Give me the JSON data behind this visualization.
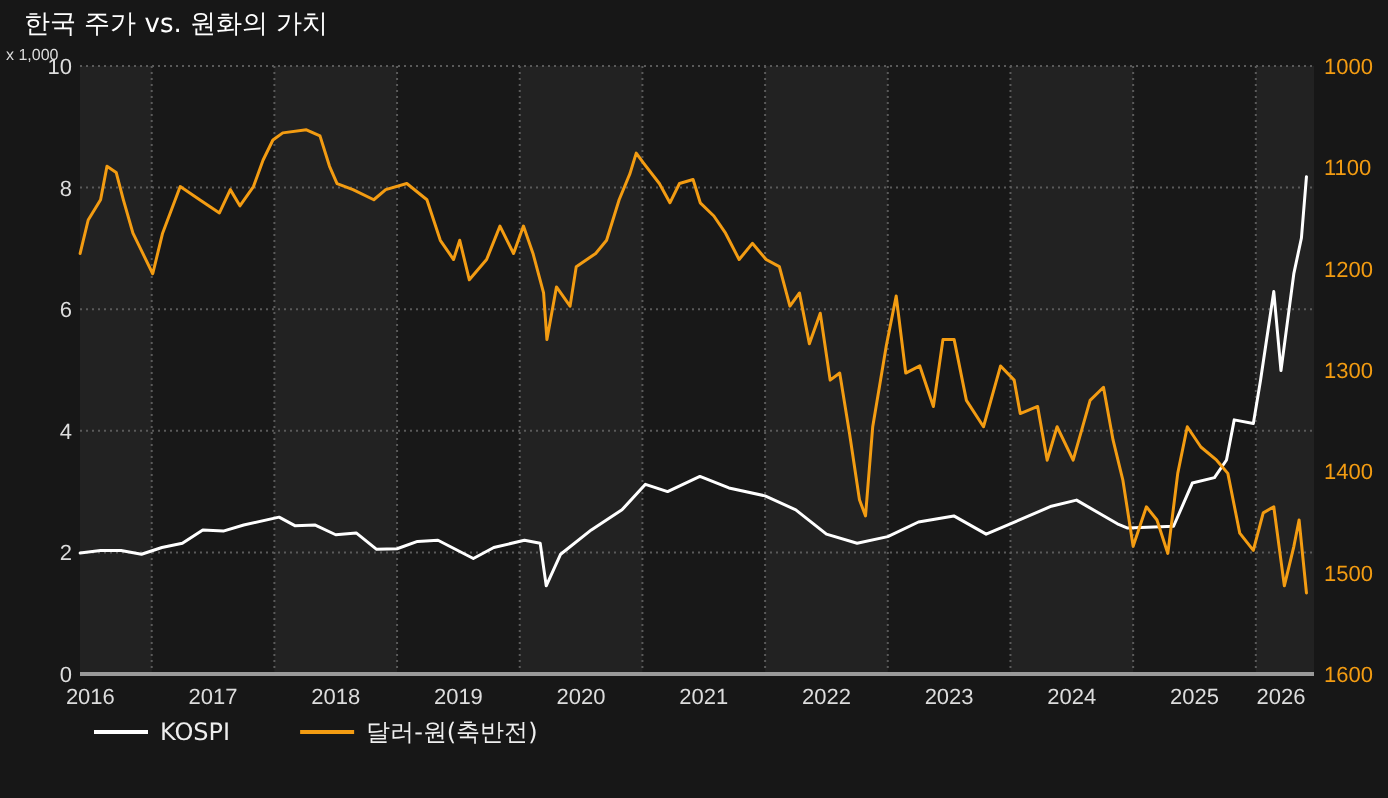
{
  "chart_data": {
    "type": "line",
    "title": "한국 주가 vs. 원화의 가치",
    "ylabel": "x 1,000",
    "xlim": [
      "2016-05-31",
      "2026-06-22"
    ],
    "xticks": [
      {
        "value": "2016-07-01",
        "label": "2016"
      },
      {
        "value": "2017-01-01",
        "label": null
      },
      {
        "value": "2017-07-01",
        "label": "2017"
      },
      {
        "value": "2018-01-01",
        "label": null
      },
      {
        "value": "2018-07-01",
        "label": "2018"
      },
      {
        "value": "2019-01-01",
        "label": null
      },
      {
        "value": "2019-07-01",
        "label": "2019"
      },
      {
        "value": "2020-01-01",
        "label": null
      },
      {
        "value": "2020-07-01",
        "label": "2020"
      },
      {
        "value": "2021-01-01",
        "label": null
      },
      {
        "value": "2021-07-01",
        "label": "2021"
      },
      {
        "value": "2022-01-01",
        "label": null
      },
      {
        "value": "2022-07-01",
        "label": "2022"
      },
      {
        "value": "2023-01-01",
        "label": null
      },
      {
        "value": "2023-07-01",
        "label": "2023"
      },
      {
        "value": "2024-01-01",
        "label": null
      },
      {
        "value": "2024-07-01",
        "label": "2024"
      },
      {
        "value": "2025-01-01",
        "label": null
      },
      {
        "value": "2025-07-01",
        "label": "2025"
      },
      {
        "value": "2026-01-01",
        "label": null
      },
      {
        "value": "2026-03-15",
        "label": "2026"
      }
    ],
    "ylim": [
      0,
      10
    ],
    "yticks": [
      0,
      2,
      4,
      6,
      8,
      10
    ],
    "y2lim": [
      1600,
      1000
    ],
    "y2ticks": [
      1000,
      1100,
      1200,
      1300,
      1400,
      1500,
      1600
    ],
    "grid": true,
    "legend": "bottom left",
    "line_style": "solid",
    "bands": [
      {
        "axis": "x",
        "from": "2016-05-31",
        "to": "2017-01-01",
        "color": "#222222"
      },
      {
        "axis": "x",
        "from": "2018-01-01",
        "to": "2019-01-01",
        "color": "#222222"
      },
      {
        "axis": "x",
        "from": "2020-01-01",
        "to": "2021-01-01",
        "color": "#222222"
      },
      {
        "axis": "x",
        "from": "2022-01-01",
        "to": "2023-01-01",
        "color": "#222222"
      },
      {
        "axis": "x",
        "from": "2024-01-01",
        "to": "2025-01-01",
        "color": "#222222"
      },
      {
        "axis": "x",
        "from": "2026-01-01",
        "to": "2026-06-22",
        "color": "#222222"
      }
    ],
    "series": [
      {
        "name": "KOSPI",
        "color": "#ffffff",
        "x": [
          "2016-06-01",
          "2016-08-01",
          "2016-10-01",
          "2016-12-01",
          "2017-02-01",
          "2017-04-01",
          "2017-06-01",
          "2017-08-01",
          "2017-10-01",
          "2018-01-15",
          "2018-03-01",
          "2018-05-01",
          "2018-07-01",
          "2018-09-01",
          "2018-11-01",
          "2019-01-01",
          "2019-03-01",
          "2019-05-01",
          "2019-08-15",
          "2019-10-15",
          "2020-01-15",
          "2020-03-01",
          "2020-03-19",
          "2020-05-01",
          "2020-08-01",
          "2020-11-01",
          "2021-01-10",
          "2021-03-15",
          "2021-06-20",
          "2021-09-15",
          "2022-01-01",
          "2022-04-01",
          "2022-07-01",
          "2022-10-01",
          "2023-01-01",
          "2023-04-01",
          "2023-07-15",
          "2023-10-20",
          "2024-05-01",
          "2024-07-15",
          "2024-11-15",
          "2024-12-15",
          "2025-04-30",
          "2025-06-25",
          "2025-08-30",
          "2025-10-05",
          "2025-10-28",
          "2025-12-24",
          "2026-01-15",
          "2026-02-24",
          "2026-03-15",
          "2026-04-23",
          "2026-05-15",
          "2026-05-30"
        ],
        "values": [
          1.99,
          2.03,
          2.03,
          1.97,
          2.08,
          2.15,
          2.37,
          2.35,
          2.45,
          2.58,
          2.44,
          2.45,
          2.29,
          2.32,
          2.05,
          2.06,
          2.18,
          2.2,
          1.9,
          2.08,
          2.2,
          2.15,
          1.45,
          1.97,
          2.37,
          2.7,
          3.12,
          3.0,
          3.25,
          3.06,
          2.93,
          2.7,
          2.3,
          2.15,
          2.26,
          2.5,
          2.6,
          2.3,
          2.76,
          2.86,
          2.47,
          2.4,
          2.43,
          3.14,
          3.23,
          3.52,
          4.18,
          4.12,
          4.83,
          6.29,
          4.99,
          6.59,
          7.17,
          8.18
        ]
      },
      {
        "name": "달러-원(축반전)",
        "color": "#f39c12",
        "axis": "y2",
        "x": [
          "2016-06-01",
          "2016-06-25",
          "2016-08-01",
          "2016-08-20",
          "2016-09-17",
          "2016-10-08",
          "2016-11-06",
          "2016-12-05",
          "2017-01-04",
          "2017-02-03",
          "2017-03-25",
          "2017-05-22",
          "2017-07-20",
          "2017-08-22",
          "2017-09-20",
          "2017-10-30",
          "2017-11-28",
          "2017-12-27",
          "2018-01-26",
          "2018-04-05",
          "2018-05-15",
          "2018-06-13",
          "2018-07-05",
          "2018-08-22",
          "2018-10-23",
          "2018-11-28",
          "2019-01-30",
          "2019-03-29",
          "2019-05-08",
          "2019-06-17",
          "2019-07-05",
          "2019-08-03",
          "2019-09-24",
          "2019-11-03",
          "2019-12-13",
          "2020-01-12",
          "2020-02-10",
          "2020-03-11",
          "2020-03-21",
          "2020-04-19",
          "2020-05-29",
          "2020-06-17",
          "2020-08-14",
          "2020-09-16",
          "2020-10-23",
          "2020-11-25",
          "2020-12-13",
          "2021-01-05",
          "2021-02-21",
          "2021-03-22",
          "2021-04-20",
          "2021-05-30",
          "2021-06-21",
          "2021-07-31",
          "2021-09-05",
          "2021-10-15",
          "2021-11-24",
          "2022-01-04",
          "2022-02-13",
          "2022-03-14",
          "2022-04-12",
          "2022-05-11",
          "2022-06-13",
          "2022-07-12",
          "2022-08-10",
          "2022-09-09",
          "2022-10-08",
          "2022-10-26",
          "2022-11-17",
          "2022-12-27",
          "2023-01-26",
          "2023-02-24",
          "2023-04-05",
          "2023-05-15",
          "2023-06-13",
          "2023-07-16",
          "2023-08-22",
          "2023-10-12",
          "2023-12-02",
          "2024-01-12",
          "2024-01-30",
          "2024-03-21",
          "2024-04-19",
          "2024-05-18",
          "2024-07-05",
          "2024-08-25",
          "2024-10-04",
          "2024-11-02",
          "2024-12-01",
          "2025-01-01",
          "2025-02-10",
          "2025-03-11",
          "2025-04-13",
          "2025-05-12",
          "2025-06-10",
          "2025-07-20",
          "2025-09-06",
          "2025-10-09",
          "2025-11-14",
          "2025-12-24",
          "2026-01-23",
          "2026-02-24",
          "2026-03-25",
          "2026-04-23",
          "2026-05-08",
          "2026-05-30"
        ],
        "values": [
          1185,
          1152,
          1132,
          1099,
          1105,
          1132,
          1165,
          1185,
          1205,
          1165,
          1119,
          1132,
          1145,
          1122,
          1138,
          1119,
          1093,
          1073,
          1066,
          1063,
          1069,
          1099,
          1116,
          1122,
          1132,
          1122,
          1116,
          1132,
          1172,
          1191,
          1172,
          1211,
          1191,
          1158,
          1185,
          1158,
          1185,
          1224,
          1270,
          1218,
          1237,
          1198,
          1185,
          1172,
          1132,
          1106,
          1086,
          1096,
          1116,
          1135,
          1116,
          1112,
          1135,
          1148,
          1165,
          1191,
          1175,
          1191,
          1198,
          1237,
          1224,
          1274,
          1244,
          1310,
          1303,
          1363,
          1428,
          1444,
          1356,
          1276,
          1227,
          1303,
          1296,
          1336,
          1270,
          1270,
          1330,
          1356,
          1296,
          1310,
          1343,
          1336,
          1389,
          1356,
          1389,
          1330,
          1317,
          1369,
          1409,
          1474,
          1435,
          1448,
          1481,
          1402,
          1356,
          1376,
          1389,
          1402,
          1461,
          1478,
          1441,
          1435,
          1513,
          1474,
          1448,
          1520
        ]
      }
    ]
  }
}
